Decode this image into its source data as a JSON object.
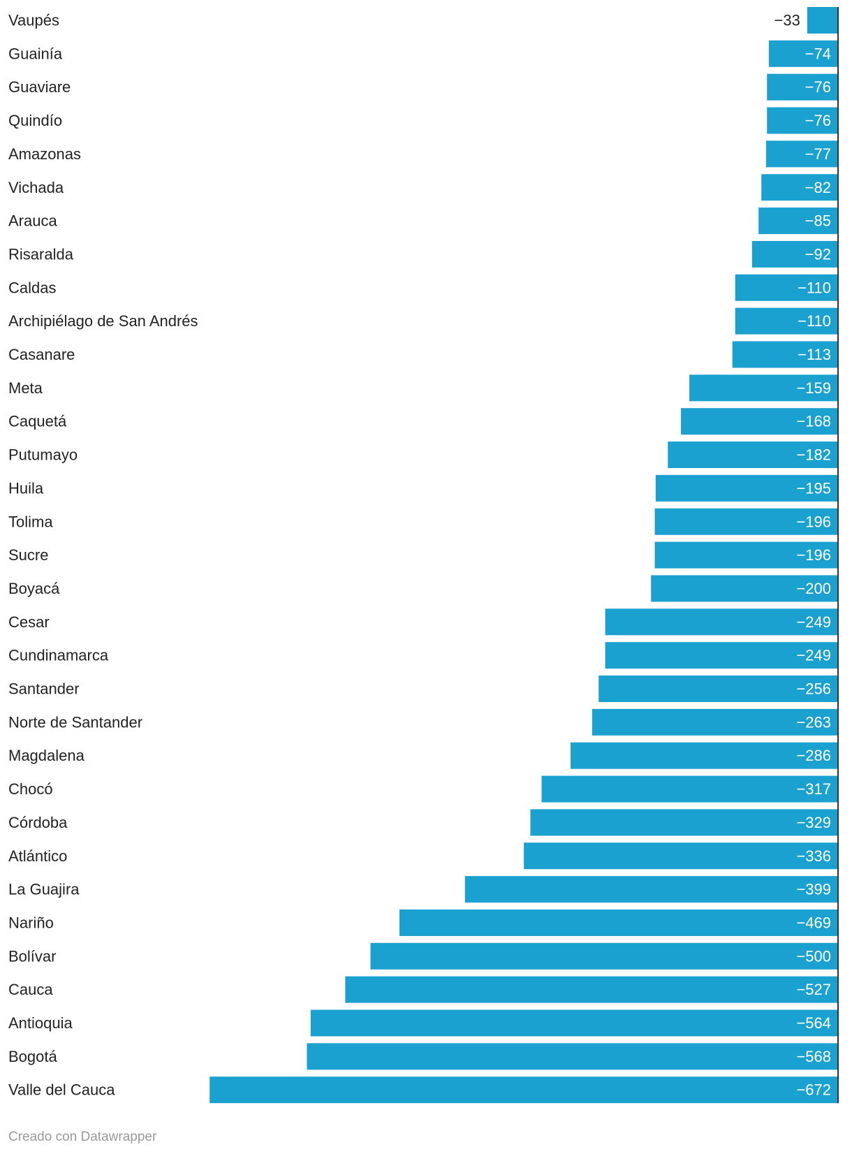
{
  "chart_data": {
    "type": "bar",
    "orientation": "horizontal",
    "title": "",
    "xlabel": "",
    "ylabel": "",
    "xlim": [
      -690,
      0
    ],
    "grid": false,
    "bar_color": "#1aa1cf",
    "categories": [
      "Vaupés",
      "Guainía",
      "Guaviare",
      "Quindío",
      "Amazonas",
      "Vichada",
      "Arauca",
      "Risaralda",
      "Caldas",
      "Archipiélago de San Andrés",
      "Casanare",
      "Meta",
      "Caquetá",
      "Putumayo",
      "Huila",
      "Tolima",
      "Sucre",
      "Boyacá",
      "Cesar",
      "Cundinamarca",
      "Santander",
      "Norte de Santander",
      "Magdalena",
      "Chocó",
      "Córdoba",
      "Atlántico",
      "La Guajira",
      "Nariño",
      "Bolívar",
      "Cauca",
      "Antioquia",
      "Bogotá",
      "Valle del Cauca"
    ],
    "values": [
      -33,
      -74,
      -76,
      -76,
      -77,
      -82,
      -85,
      -92,
      -110,
      -110,
      -113,
      -159,
      -168,
      -182,
      -195,
      -196,
      -196,
      -200,
      -249,
      -249,
      -256,
      -263,
      -286,
      -317,
      -329,
      -336,
      -399,
      -469,
      -500,
      -527,
      -564,
      -568,
      -672
    ],
    "value_labels": [
      "−33",
      "−74",
      "−76",
      "−76",
      "−77",
      "−82",
      "−85",
      "−92",
      "−110",
      "−110",
      "−113",
      "−159",
      "−168",
      "−182",
      "−195",
      "−196",
      "−196",
      "−200",
      "−249",
      "−249",
      "−256",
      "−263",
      "−286",
      "−317",
      "−329",
      "−336",
      "−399",
      "−469",
      "−500",
      "−527",
      "−564",
      "−568",
      "−672"
    ]
  },
  "footer": {
    "credit": "Creado con Datawrapper"
  }
}
